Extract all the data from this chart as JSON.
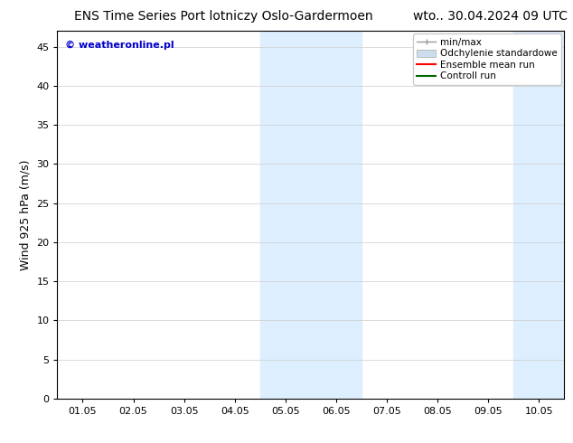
{
  "title_left": "ENS Time Series Port lotniczy Oslo-Gardermoen",
  "title_right": "wto.. 30.04.2024 09 UTC",
  "ylabel": "Wind 925 hPa (m/s)",
  "watermark": "© weatheronline.pl",
  "watermark_color": "#0000cc",
  "background_color": "#ffffff",
  "plot_bg_color": "#ffffff",
  "shaded_bands_x": [
    [
      3.5,
      4.5
    ],
    [
      4.5,
      5.5
    ],
    [
      8.5,
      9.5
    ],
    [
      9.5,
      10.5
    ]
  ],
  "shaded_color": "#ddeeff",
  "ylim": [
    0,
    47
  ],
  "yticks": [
    0,
    5,
    10,
    15,
    20,
    25,
    30,
    35,
    40,
    45
  ],
  "xticks_labels": [
    "01.05",
    "02.05",
    "03.05",
    "04.05",
    "05.05",
    "06.05",
    "07.05",
    "08.05",
    "09.05",
    "10.05"
  ],
  "xticks_positions": [
    0,
    1,
    2,
    3,
    4,
    5,
    6,
    7,
    8,
    9
  ],
  "xlim": [
    -0.5,
    9.5
  ],
  "legend_labels": [
    "min/max",
    "Odchylenie standardowe",
    "Ensemble mean run",
    "Controll run"
  ],
  "legend_colors": [
    "#aaaaaa",
    "#ccdded",
    "#ff0000",
    "#006600"
  ],
  "grid_color": "#cccccc",
  "spine_color": "#000000",
  "title_fontsize": 10,
  "label_fontsize": 9,
  "tick_fontsize": 8,
  "watermark_fontsize": 8,
  "legend_fontsize": 7.5
}
